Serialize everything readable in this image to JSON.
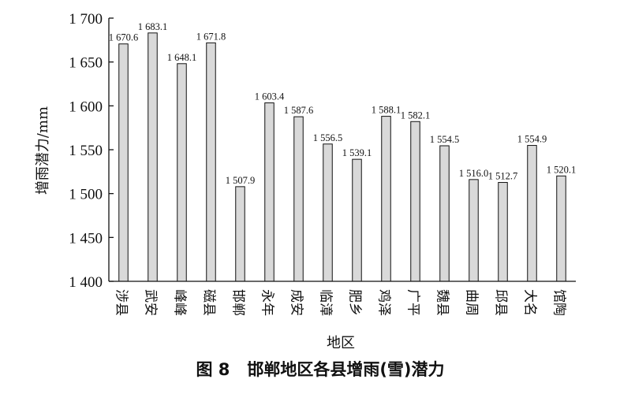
{
  "chart_data": {
    "type": "bar",
    "caption": "图 8   邯郸地区各县增雨(雪)潜力",
    "xlabel": "地区",
    "ylabel": "增雨潜力/mm",
    "ylim": [
      1400,
      1700
    ],
    "yticks": [
      1400,
      1450,
      1500,
      1550,
      1600,
      1650,
      1700
    ],
    "ytick_labels": [
      "1 400",
      "1 450",
      "1 500",
      "1 550",
      "1 600",
      "1 650",
      "1 700"
    ],
    "categories": [
      "涉县",
      "武安",
      "峰峰",
      "磁县",
      "邯郸",
      "永年",
      "成安",
      "临漳",
      "肥乡",
      "鸡泽",
      "广平",
      "魏县",
      "曲周",
      "邱县",
      "大名",
      "馆陶"
    ],
    "values": [
      1670.6,
      1683.1,
      1648.1,
      1671.8,
      1507.9,
      1603.4,
      1587.6,
      1556.5,
      1539.1,
      1588.1,
      1582.1,
      1554.5,
      1516.0,
      1512.7,
      1554.9,
      1520.1
    ],
    "value_labels": [
      "1 670.6",
      "1 683.1",
      "1 648.1",
      "1 671.8",
      "1 507.9",
      "1 603.4",
      "1 587.6",
      "1 556.5",
      "1 539.1",
      "1 588.1",
      "1 582.1",
      "1 554.5",
      "1 516.0",
      "1 512.7",
      "1 554.9",
      "1 520.1"
    ],
    "bar_color": "#d9d9d9",
    "bar_stroke": "#111111",
    "grid": false,
    "legend": "none"
  }
}
